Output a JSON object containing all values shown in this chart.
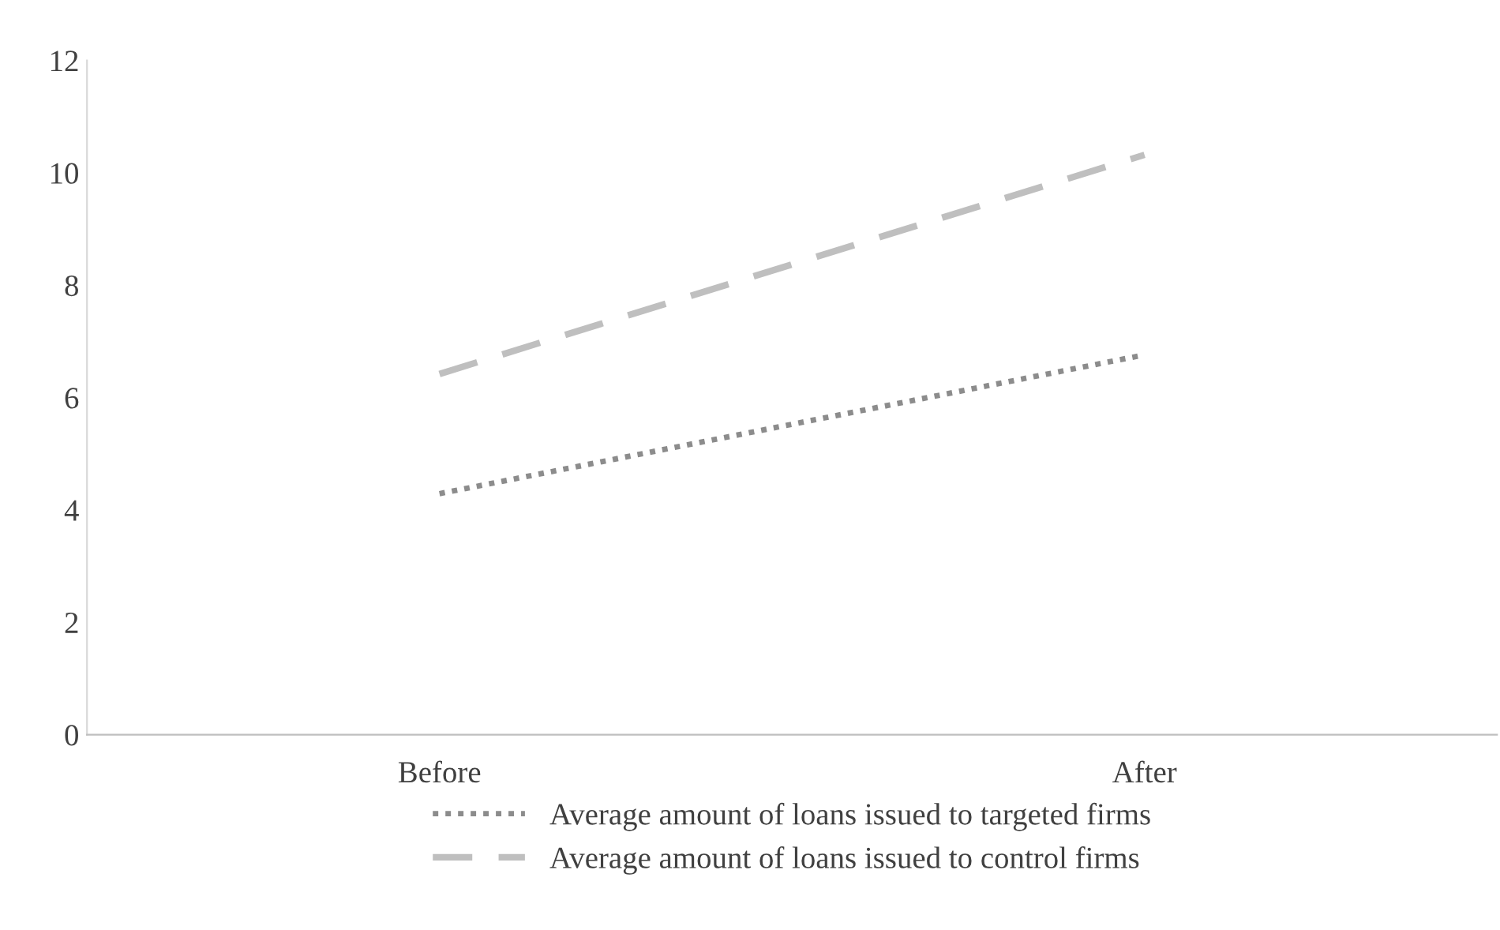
{
  "chart_data": {
    "type": "line",
    "categories": [
      "Before",
      "After"
    ],
    "series": [
      {
        "name": "Average amount of loans issued to targeted firms",
        "color": "#8c8c8c",
        "values": [
          4.29,
          6.76
        ],
        "line_style": "dotted"
      },
      {
        "name": "Average amount of loans issued to control firms",
        "color": "#bfbfbf",
        "values": [
          6.42,
          10.32
        ],
        "line_style": "dashed"
      }
    ],
    "ylim": [
      0,
      12
    ],
    "yticks": [
      0,
      2,
      4,
      6,
      8,
      10,
      12
    ],
    "grid": false,
    "legend": "bottom",
    "marker": "none"
  }
}
